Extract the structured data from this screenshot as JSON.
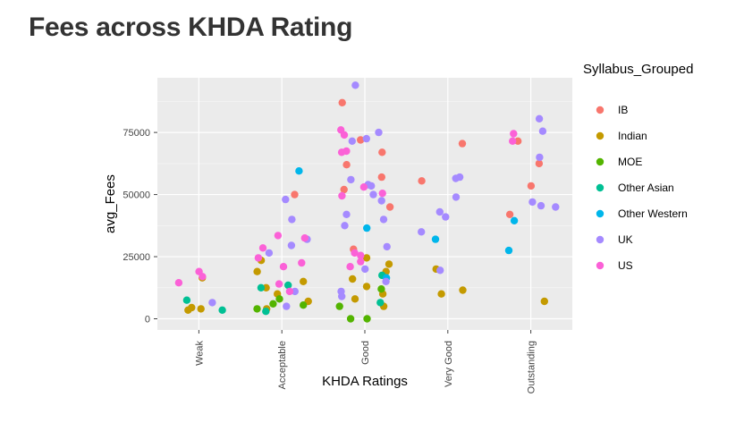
{
  "chart_data": {
    "type": "scatter",
    "title": "Fees across KHDA Rating",
    "xlabel": "KHDA Ratings",
    "ylabel": "avg_Fees",
    "categories": [
      "Weak",
      "Acceptable",
      "Good",
      "Very Good",
      "Outstanding"
    ],
    "y_ticks": [
      "0",
      "25000",
      "50000",
      "75000"
    ],
    "ylim": [
      -4500,
      97000
    ],
    "grid": true,
    "legend": {
      "title": "Syllabus_Grouped",
      "position": "right"
    },
    "series": [
      {
        "name": "IB",
        "color": "#F8766D",
        "points": [
          {
            "x": "Acceptable",
            "y": 50000
          },
          {
            "x": "Good",
            "y": 87000
          },
          {
            "x": "Good",
            "y": 72000
          },
          {
            "x": "Good",
            "y": 67000
          },
          {
            "x": "Good",
            "y": 62000
          },
          {
            "x": "Good",
            "y": 57000
          },
          {
            "x": "Good",
            "y": 52000
          },
          {
            "x": "Good",
            "y": 45000
          },
          {
            "x": "Good",
            "y": 28000
          },
          {
            "x": "Very Good",
            "y": 70500
          },
          {
            "x": "Very Good",
            "y": 55500
          },
          {
            "x": "Outstanding",
            "y": 71500
          },
          {
            "x": "Outstanding",
            "y": 62500
          },
          {
            "x": "Outstanding",
            "y": 53500
          },
          {
            "x": "Outstanding",
            "y": 42000
          }
        ]
      },
      {
        "name": "Indian",
        "color": "#C49A00",
        "points": [
          {
            "x": "Weak",
            "y": 16500
          },
          {
            "x": "Weak",
            "y": 4500
          },
          {
            "x": "Weak",
            "y": 3500
          },
          {
            "x": "Weak",
            "y": 4000
          },
          {
            "x": "Acceptable",
            "y": 23500
          },
          {
            "x": "Acceptable",
            "y": 19000
          },
          {
            "x": "Acceptable",
            "y": 15000
          },
          {
            "x": "Acceptable",
            "y": 12500
          },
          {
            "x": "Acceptable",
            "y": 10000
          },
          {
            "x": "Acceptable",
            "y": 7000
          },
          {
            "x": "Acceptable",
            "y": 4000
          },
          {
            "x": "Good",
            "y": 24500
          },
          {
            "x": "Good",
            "y": 22000
          },
          {
            "x": "Good",
            "y": 19000
          },
          {
            "x": "Good",
            "y": 16000
          },
          {
            "x": "Good",
            "y": 13000
          },
          {
            "x": "Good",
            "y": 10000
          },
          {
            "x": "Good",
            "y": 8000
          },
          {
            "x": "Good",
            "y": 5000
          },
          {
            "x": "Very Good",
            "y": 20000
          },
          {
            "x": "Very Good",
            "y": 11500
          },
          {
            "x": "Very Good",
            "y": 10000
          },
          {
            "x": "Outstanding",
            "y": 7000
          }
        ]
      },
      {
        "name": "MOE",
        "color": "#53B400",
        "points": [
          {
            "x": "Acceptable",
            "y": 8000
          },
          {
            "x": "Acceptable",
            "y": 6000
          },
          {
            "x": "Acceptable",
            "y": 5500
          },
          {
            "x": "Acceptable",
            "y": 4000
          },
          {
            "x": "Good",
            "y": 12000
          },
          {
            "x": "Good",
            "y": 5000
          },
          {
            "x": "Good",
            "y": 0
          },
          {
            "x": "Good",
            "y": 0
          }
        ]
      },
      {
        "name": "Other Asian",
        "color": "#00C094",
        "points": [
          {
            "x": "Weak",
            "y": 7500
          },
          {
            "x": "Weak",
            "y": 3500
          },
          {
            "x": "Acceptable",
            "y": 13500
          },
          {
            "x": "Acceptable",
            "y": 12500
          },
          {
            "x": "Acceptable",
            "y": 3000
          },
          {
            "x": "Good",
            "y": 17500
          },
          {
            "x": "Good",
            "y": 6500
          }
        ]
      },
      {
        "name": "Other Western",
        "color": "#00B6EB",
        "points": [
          {
            "x": "Acceptable",
            "y": 59500
          },
          {
            "x": "Good",
            "y": 36500
          },
          {
            "x": "Good",
            "y": 16500
          },
          {
            "x": "Very Good",
            "y": 32000
          },
          {
            "x": "Outstanding",
            "y": 39500
          },
          {
            "x": "Outstanding",
            "y": 27500
          }
        ]
      },
      {
        "name": "UK",
        "color": "#A58AFF",
        "points": [
          {
            "x": "Weak",
            "y": 6500
          },
          {
            "x": "Acceptable",
            "y": 48000
          },
          {
            "x": "Acceptable",
            "y": 40000
          },
          {
            "x": "Acceptable",
            "y": 32000
          },
          {
            "x": "Acceptable",
            "y": 29500
          },
          {
            "x": "Acceptable",
            "y": 26500
          },
          {
            "x": "Acceptable",
            "y": 11000
          },
          {
            "x": "Acceptable",
            "y": 5000
          },
          {
            "x": "Good",
            "y": 94000
          },
          {
            "x": "Good",
            "y": 75000
          },
          {
            "x": "Good",
            "y": 72500
          },
          {
            "x": "Good",
            "y": 71500
          },
          {
            "x": "Good",
            "y": 56000
          },
          {
            "x": "Good",
            "y": 54000
          },
          {
            "x": "Good",
            "y": 53500
          },
          {
            "x": "Good",
            "y": 50000
          },
          {
            "x": "Good",
            "y": 47500
          },
          {
            "x": "Good",
            "y": 42000
          },
          {
            "x": "Good",
            "y": 40000
          },
          {
            "x": "Good",
            "y": 37500
          },
          {
            "x": "Good",
            "y": 29000
          },
          {
            "x": "Good",
            "y": 20000
          },
          {
            "x": "Good",
            "y": 15000
          },
          {
            "x": "Good",
            "y": 11000
          },
          {
            "x": "Good",
            "y": 9000
          },
          {
            "x": "Very Good",
            "y": 57000
          },
          {
            "x": "Very Good",
            "y": 56500
          },
          {
            "x": "Very Good",
            "y": 49000
          },
          {
            "x": "Very Good",
            "y": 43000
          },
          {
            "x": "Very Good",
            "y": 41000
          },
          {
            "x": "Very Good",
            "y": 35000
          },
          {
            "x": "Very Good",
            "y": 19500
          },
          {
            "x": "Outstanding",
            "y": 80500
          },
          {
            "x": "Outstanding",
            "y": 75500
          },
          {
            "x": "Outstanding",
            "y": 65000
          },
          {
            "x": "Outstanding",
            "y": 47000
          },
          {
            "x": "Outstanding",
            "y": 45500
          },
          {
            "x": "Outstanding",
            "y": 45000
          }
        ]
      },
      {
        "name": "US",
        "color": "#FB61D7",
        "points": [
          {
            "x": "Weak",
            "y": 19000
          },
          {
            "x": "Weak",
            "y": 17000
          },
          {
            "x": "Weak",
            "y": 14500
          },
          {
            "x": "Acceptable",
            "y": 33500
          },
          {
            "x": "Acceptable",
            "y": 32500
          },
          {
            "x": "Acceptable",
            "y": 28500
          },
          {
            "x": "Acceptable",
            "y": 24500
          },
          {
            "x": "Acceptable",
            "y": 22500
          },
          {
            "x": "Acceptable",
            "y": 21000
          },
          {
            "x": "Acceptable",
            "y": 14000
          },
          {
            "x": "Acceptable",
            "y": 11000
          },
          {
            "x": "Good",
            "y": 76000
          },
          {
            "x": "Good",
            "y": 74000
          },
          {
            "x": "Good",
            "y": 67500
          },
          {
            "x": "Good",
            "y": 67000
          },
          {
            "x": "Good",
            "y": 53000
          },
          {
            "x": "Good",
            "y": 50500
          },
          {
            "x": "Good",
            "y": 49500
          },
          {
            "x": "Good",
            "y": 26500
          },
          {
            "x": "Good",
            "y": 25500
          },
          {
            "x": "Good",
            "y": 23000
          },
          {
            "x": "Good",
            "y": 21000
          },
          {
            "x": "Outstanding",
            "y": 74500
          },
          {
            "x": "Outstanding",
            "y": 71500
          }
        ]
      }
    ]
  }
}
